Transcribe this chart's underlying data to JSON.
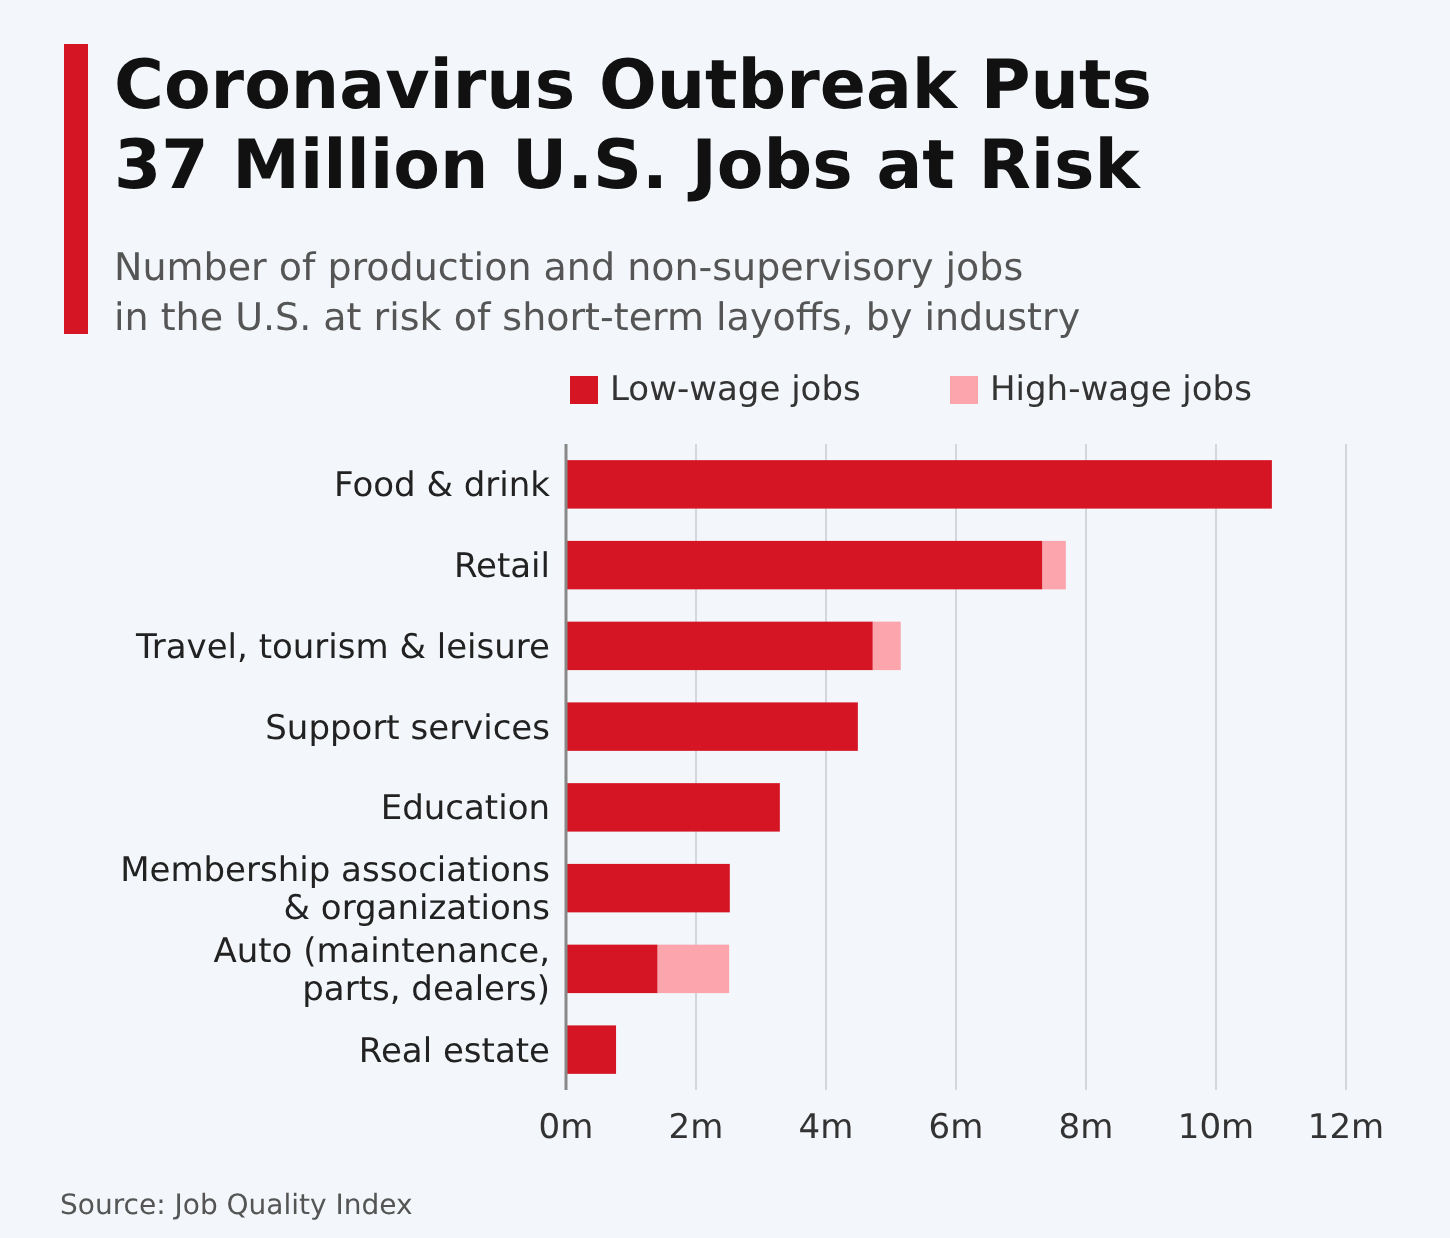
{
  "chart_data": {
    "type": "bar",
    "orientation": "horizontal",
    "stacked": true,
    "title": "Coronavirus Outbreak Puts\n37 Million U.S. Jobs at Risk",
    "subtitle": "Number of production and non-supervisory jobs\nin the U.S. at risk of short-term layoffs, by industry",
    "categories": [
      "Food & drink",
      "Retail",
      "Travel, tourism & leisure",
      "Support services",
      "Education",
      "Membership associations\n& organizations",
      "Auto (maintenance,\nparts, dealers)",
      "Real estate"
    ],
    "series": [
      {
        "name": "Low-wage jobs",
        "color": "#d51523",
        "values": [
          10.86,
          7.33,
          4.72,
          4.49,
          3.29,
          2.52,
          1.41,
          0.77
        ]
      },
      {
        "name": "High-wage jobs",
        "color": "#fca5ac",
        "values": [
          null,
          0.36,
          0.43,
          null,
          null,
          null,
          1.1,
          null
        ]
      }
    ],
    "xlim": [
      0,
      12
    ],
    "xticks": [
      {
        "value": 0,
        "label": "0m"
      },
      {
        "value": 2,
        "label": "2m"
      },
      {
        "value": 4,
        "label": "4m"
      },
      {
        "value": 6,
        "label": "6m"
      },
      {
        "value": 8,
        "label": "8m"
      },
      {
        "value": 10,
        "label": "10m"
      },
      {
        "value": 12,
        "label": "12m"
      }
    ],
    "grid": "x",
    "legend": "top",
    "annotations": [
      "Source: Job Quality Index"
    ]
  }
}
